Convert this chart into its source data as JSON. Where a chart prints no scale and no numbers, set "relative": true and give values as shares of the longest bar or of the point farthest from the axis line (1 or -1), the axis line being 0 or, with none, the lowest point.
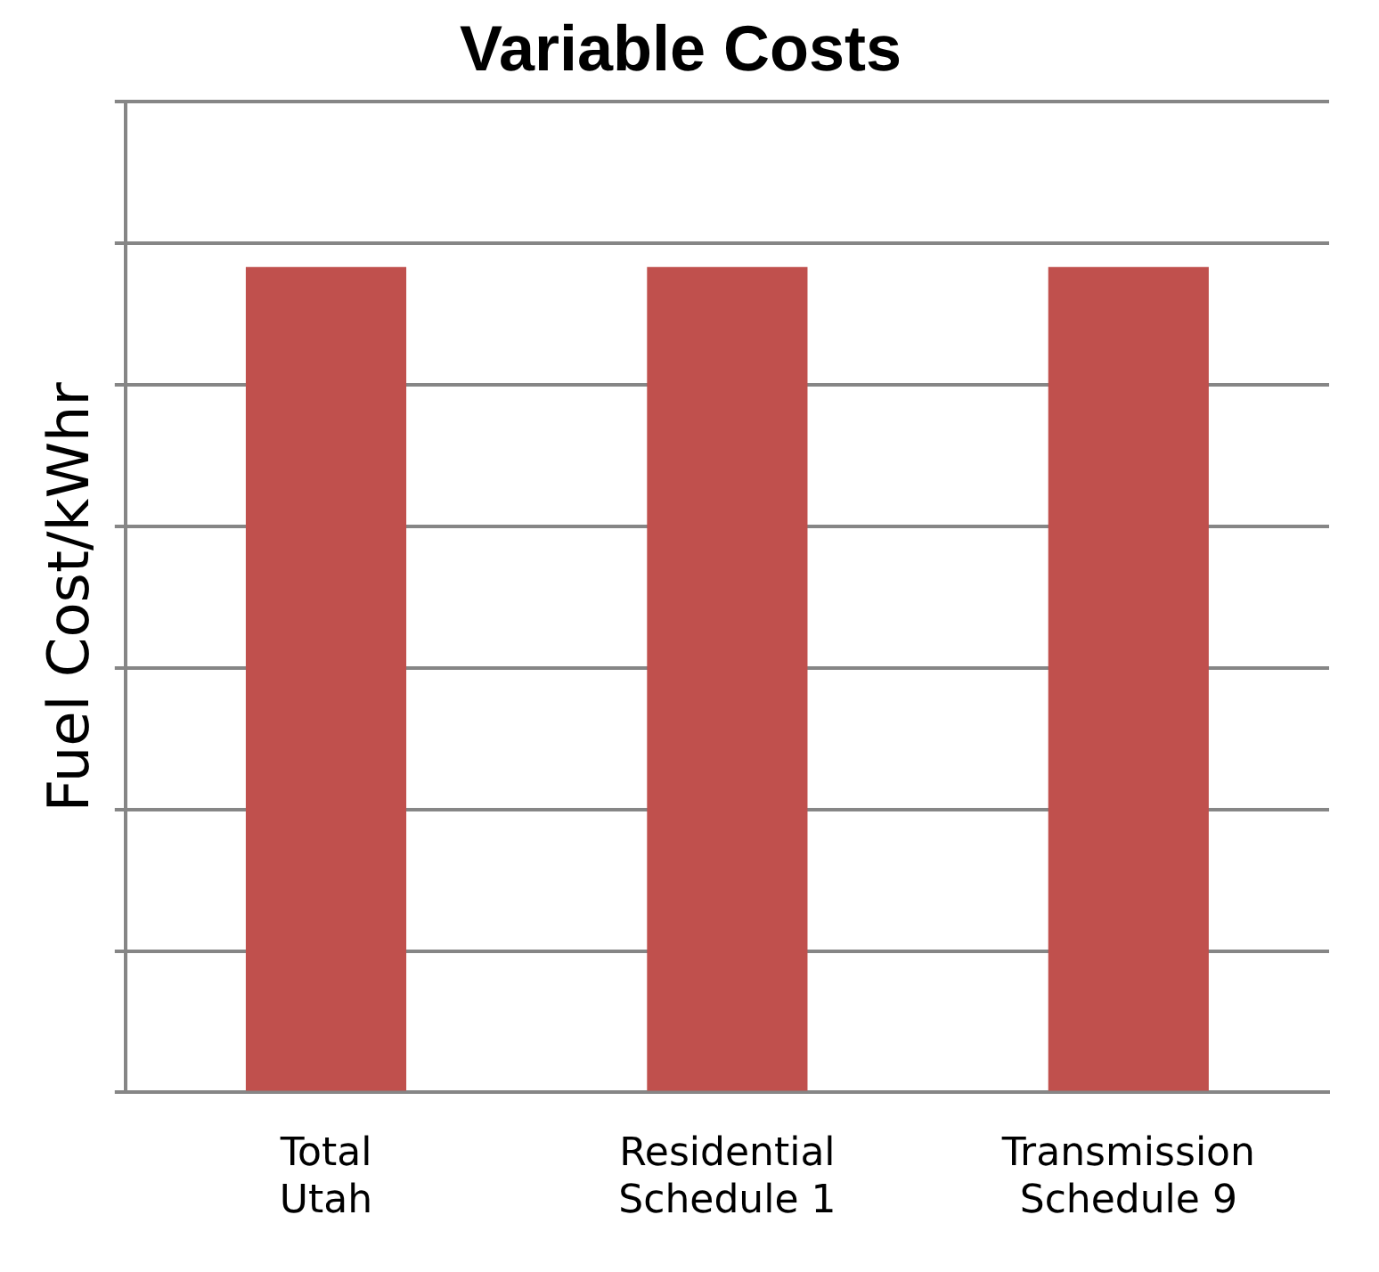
{
  "chart_data": {
    "type": "bar",
    "title": "Variable Costs",
    "ylabel": "Fuel Cost/kWhr",
    "categories": [
      "Total\nUtah",
      "Residential\nSchedule 1",
      "Transmission\nSchedule 9"
    ],
    "values": [
      1,
      1,
      1
    ],
    "color": "#c0504d",
    "relative": true,
    "grid": "y",
    "legend": false
  }
}
